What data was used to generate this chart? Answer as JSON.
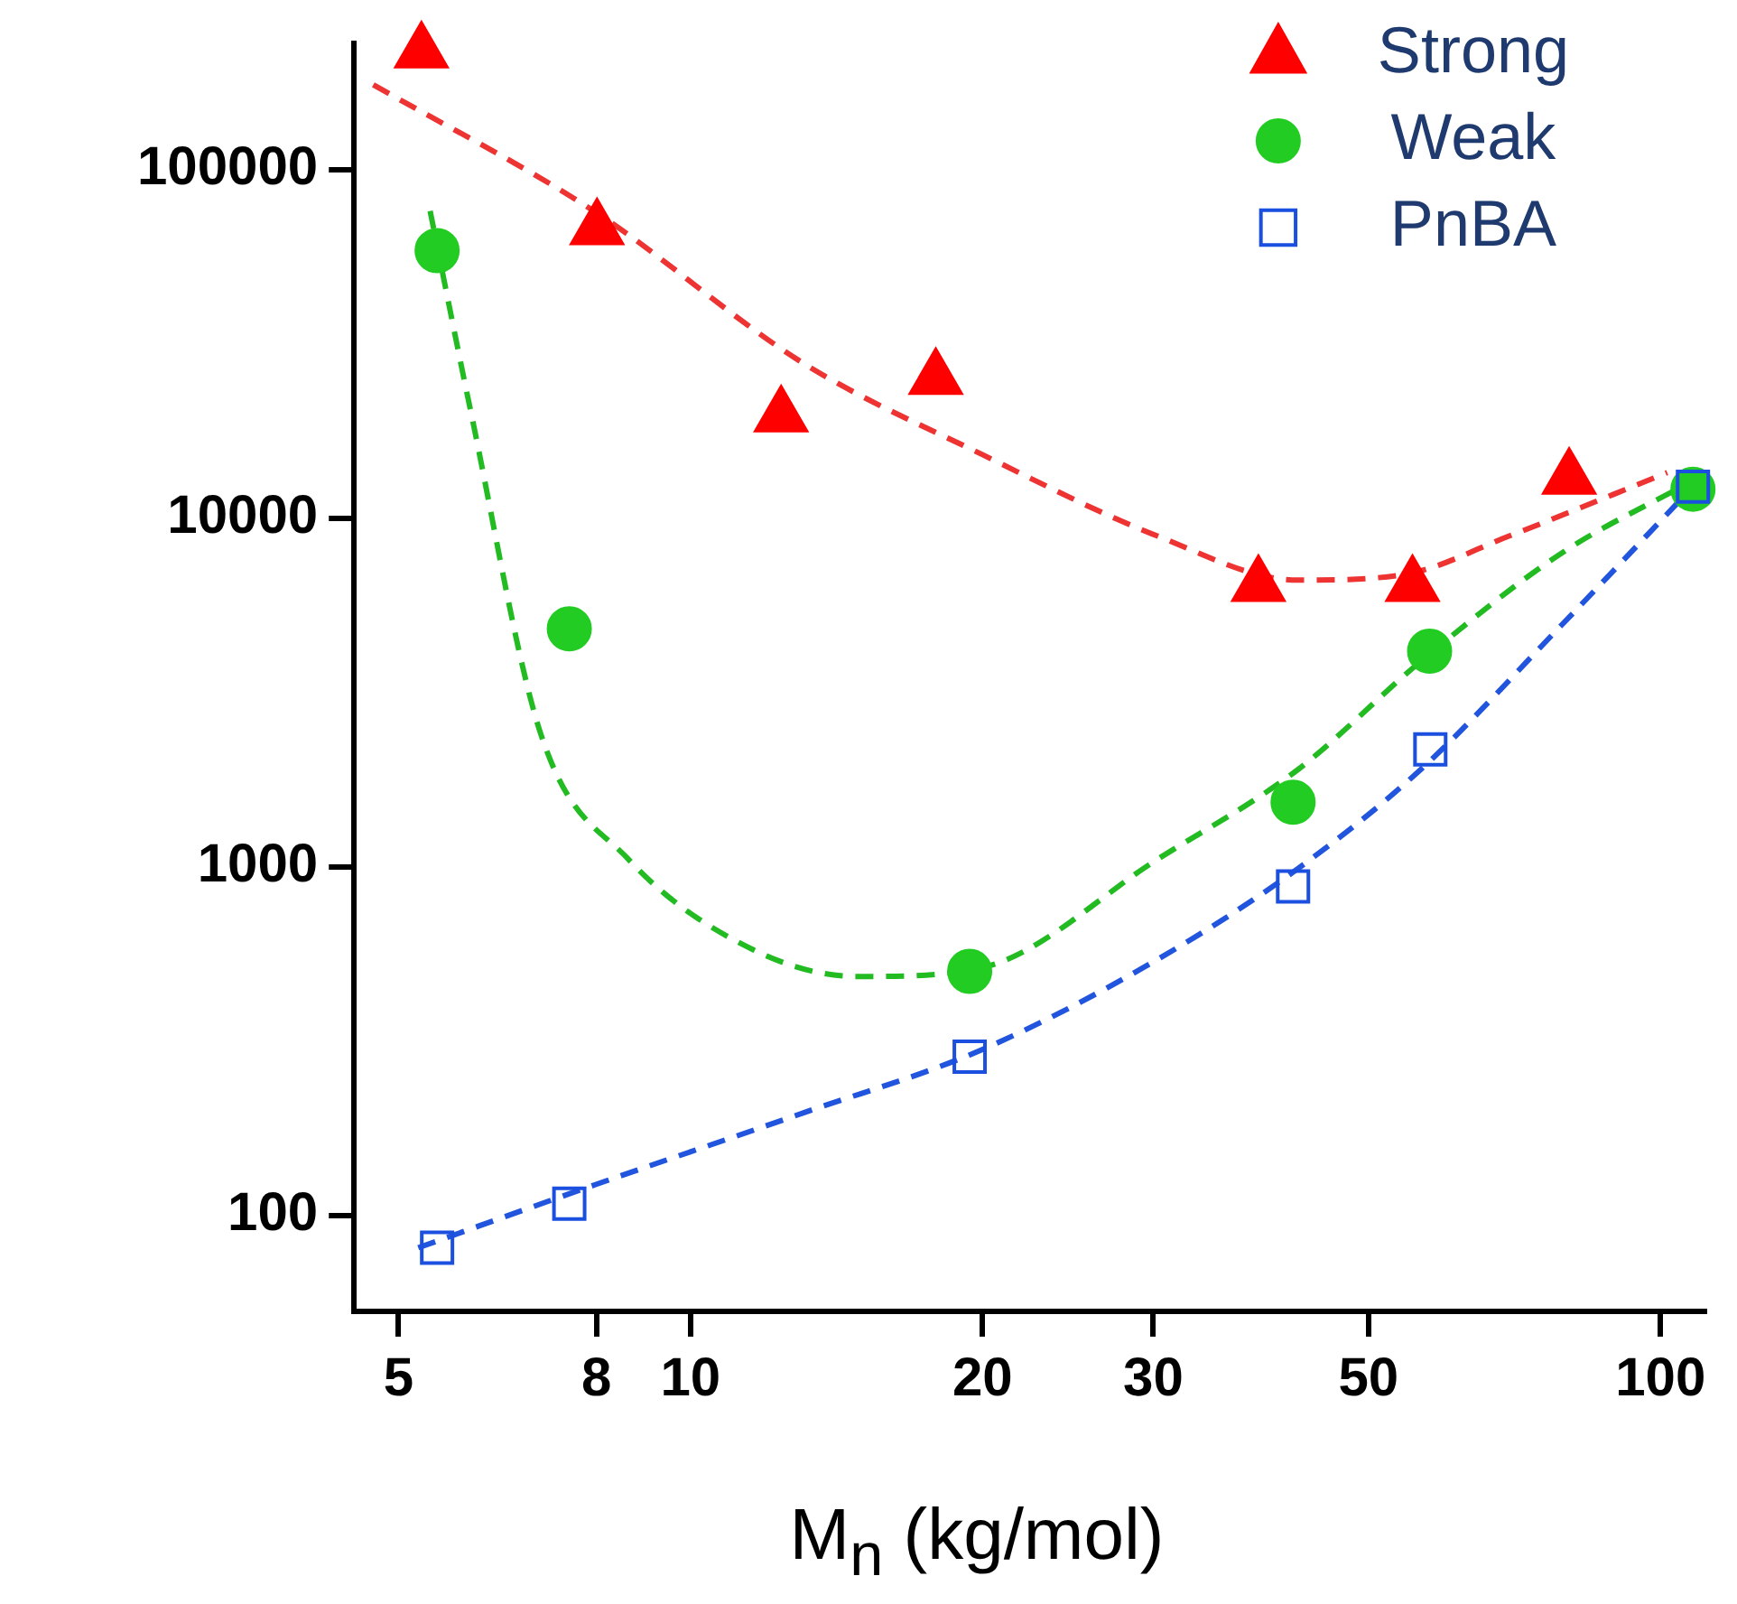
{
  "chart_data": {
    "type": "scatter",
    "xlabel": "M$_{n}$ (kg/mol)",
    "log": "xy",
    "grid": false,
    "legend": "top right",
    "xlim": [
      4.5,
      111
    ],
    "xticks": [
      5,
      8,
      10,
      20,
      30,
      50,
      100
    ],
    "ylim": [
      53,
      230000
    ],
    "yticks": [
      100,
      1000,
      10000,
      100000
    ],
    "series": [
      {
        "name": "Strong",
        "marker": "triangle",
        "color": "#ff0000",
        "x": [
          5.28,
          8.01,
          12.4,
          17.9,
          38.5,
          55.5,
          80.5
        ],
        "values": [
          217000,
          67500,
          19600,
          25100,
          6400,
          6400,
          13000
        ]
      },
      {
        "name": "Weak",
        "marker": "circle",
        "color": "#22cc22",
        "x": [
          5.48,
          7.5,
          19.4,
          41.8,
          57.8,
          108
        ],
        "values": [
          58500,
          4810,
          501,
          1530,
          4150,
          12100
        ]
      },
      {
        "name": "PnBA",
        "marker": "square",
        "color": "#1a4fe0",
        "x": [
          5.48,
          7.5,
          19.4,
          41.8,
          57.9,
          108
        ],
        "values": [
          80.7,
          108,
          285,
          877,
          2170,
          12300
        ]
      },
      {
        "type": "line",
        "marker": "none",
        "line_style": "dashed",
        "color": "#ee3333",
        "x": [
          4.71,
          7.95,
          13.1,
          20,
          30.3,
          42.3,
          54.3,
          69.8,
          101.6
        ],
        "values": [
          175000,
          76000,
          27700,
          15200,
          8880,
          6640,
          6880,
          8880,
          13500
        ]
      },
      {
        "type": "line",
        "marker": "none",
        "line_style": "dashed",
        "color": "#22bb22",
        "x": [
          5.39,
          5.93,
          7.01,
          8.63,
          11.6,
          14.9,
          20,
          30.3,
          42.3,
          56.6,
          79,
          108
        ],
        "values": [
          76000,
          20500,
          2400,
          1050,
          578,
          484,
          514,
          1050,
          1900,
          3880,
          7920,
          12800
        ]
      },
      {
        "type": "line",
        "marker": "none",
        "line_style": "dashed",
        "color": "#2255dd",
        "x": [
          5.24,
          7.95,
          13.1,
          20,
          30.3,
          42.3,
          56.6,
          79,
          108
        ],
        "values": [
          80.7,
          122,
          197,
          299,
          542,
          988,
          1900,
          4920,
          12300
        ]
      }
    ]
  }
}
